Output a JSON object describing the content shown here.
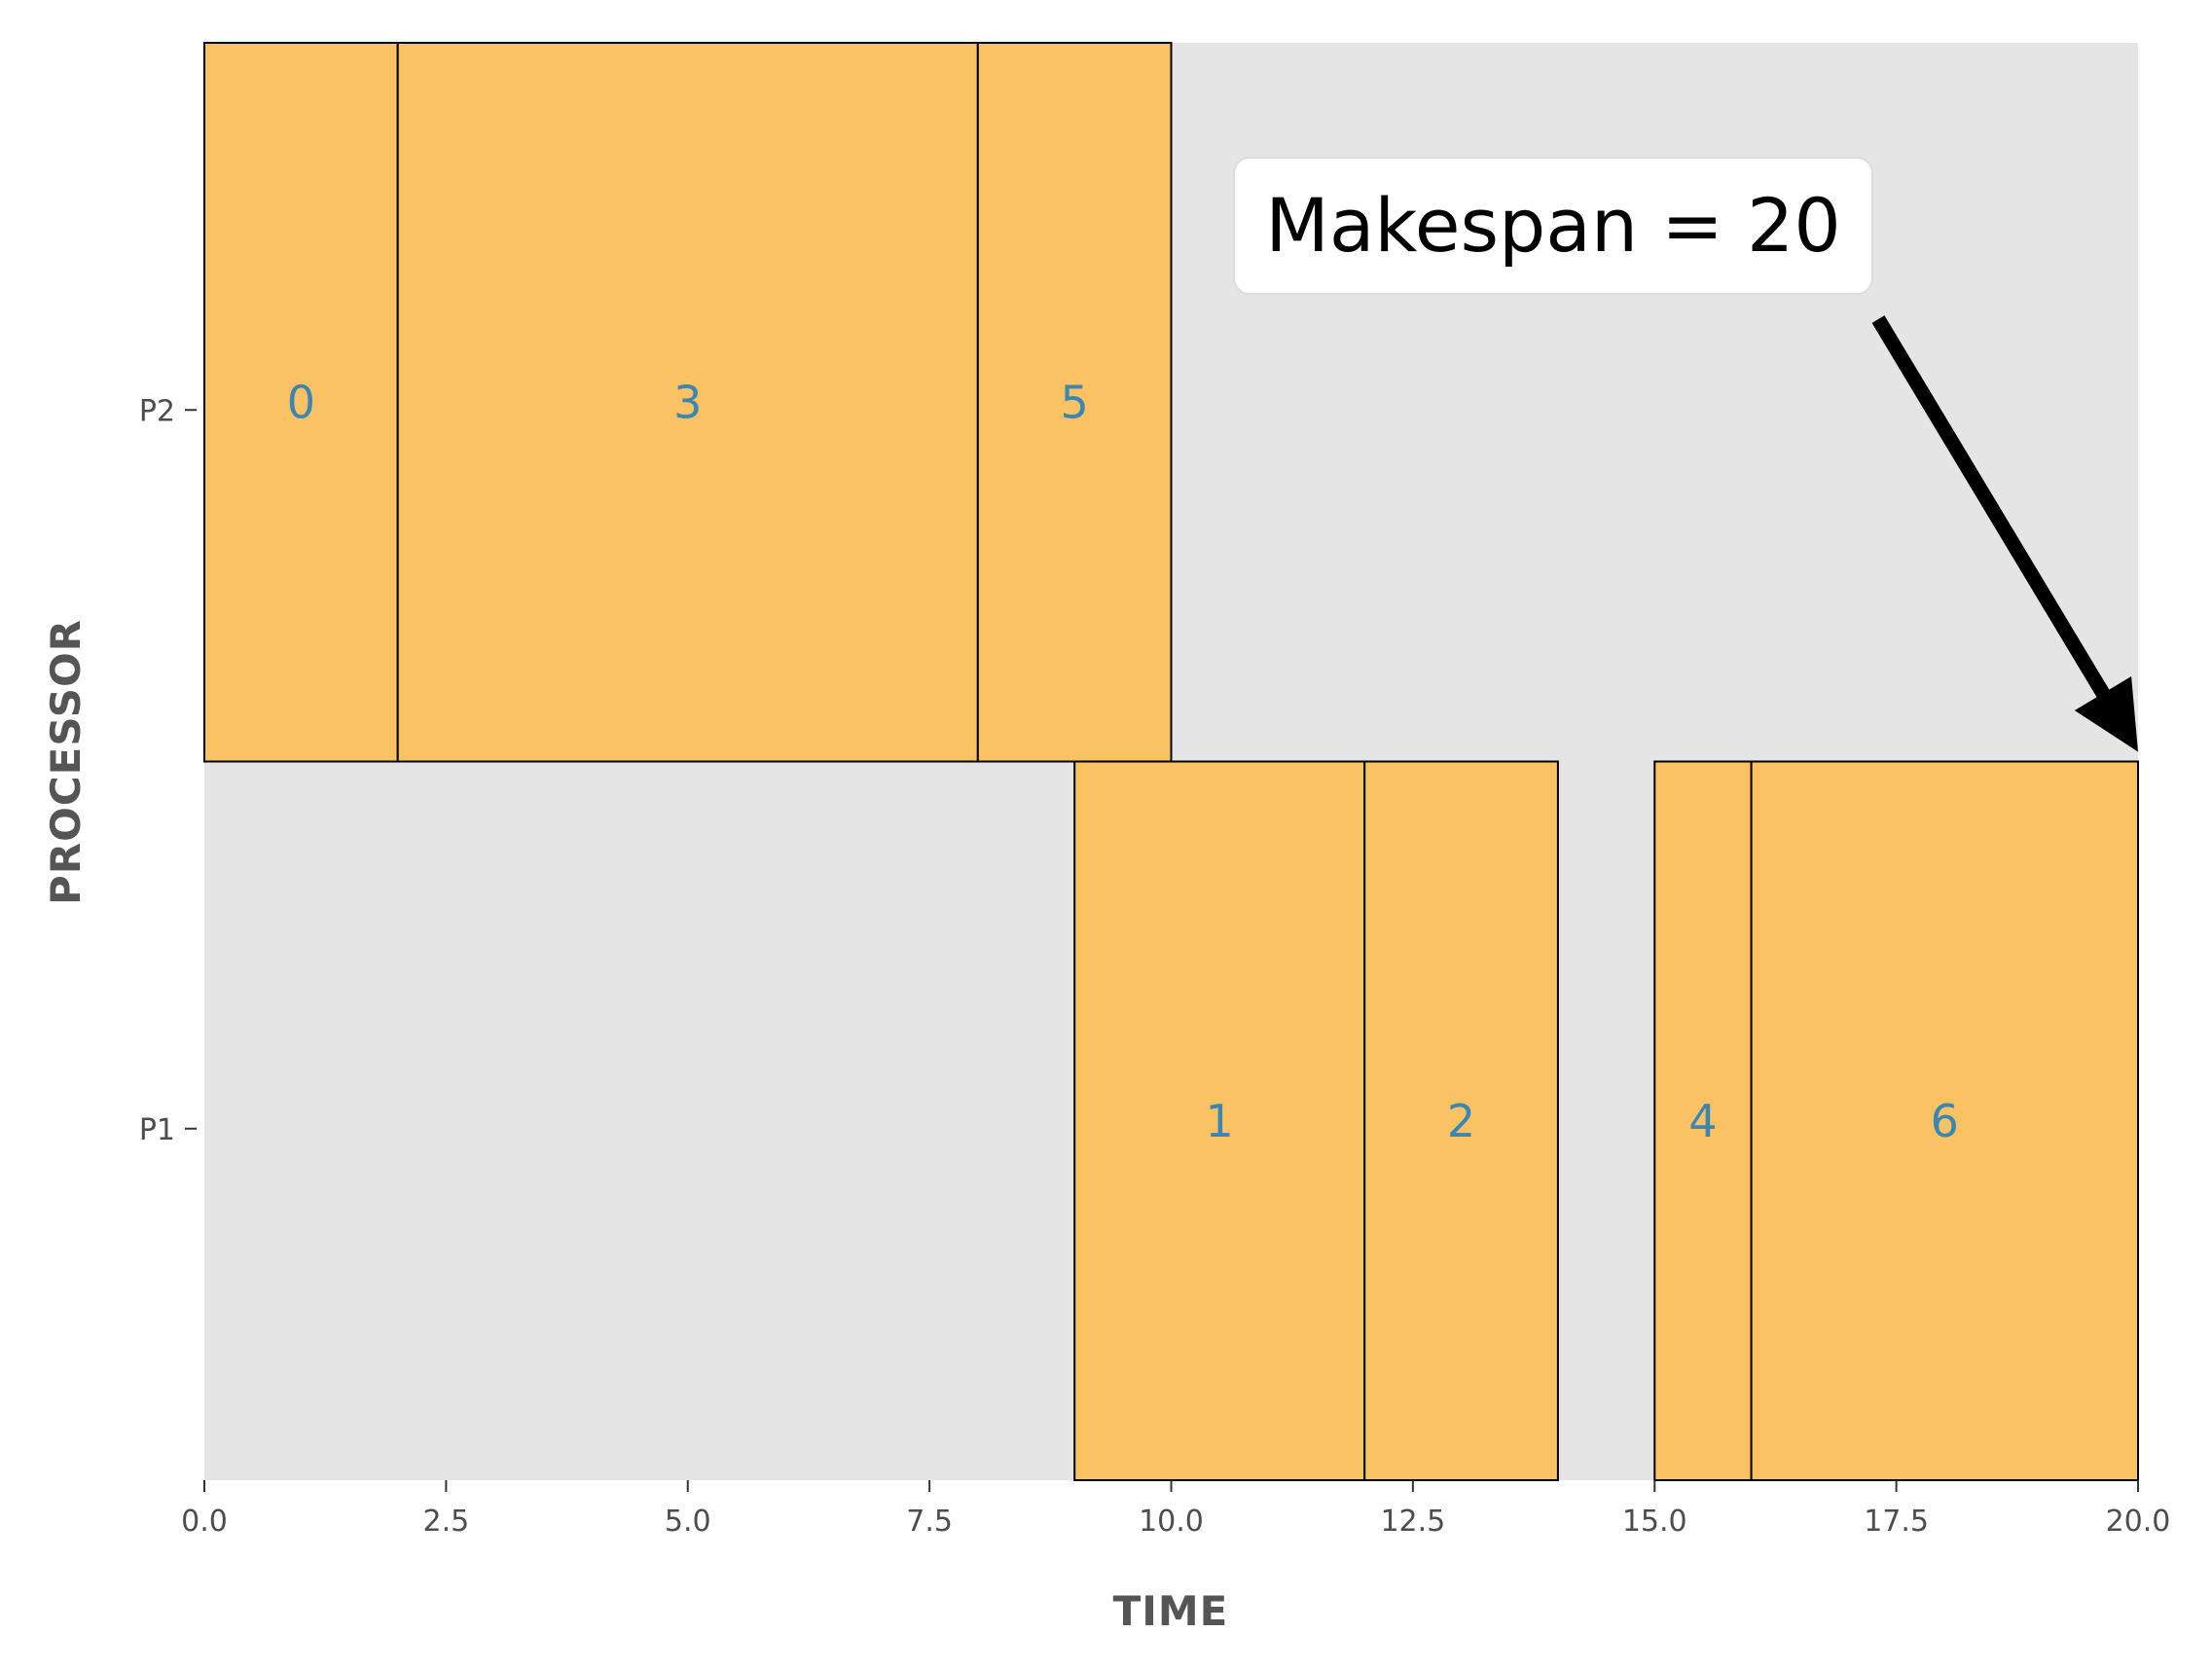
{
  "chart_data": {
    "type": "gantt",
    "xlabel": "TIME",
    "ylabel": "PROCESSOR",
    "xlim": [
      0,
      20
    ],
    "xticks": [
      "0.0",
      "2.5",
      "5.0",
      "7.5",
      "10.0",
      "12.5",
      "15.0",
      "17.5",
      "20.0"
    ],
    "xtick_values": [
      0,
      2.5,
      5,
      7.5,
      10,
      12.5,
      15,
      17.5,
      20
    ],
    "processors": [
      "P2",
      "P1"
    ],
    "tasks": [
      {
        "id": "0",
        "processor": "P2",
        "start": 0,
        "end": 2
      },
      {
        "id": "3",
        "processor": "P2",
        "start": 2,
        "end": 8
      },
      {
        "id": "5",
        "processor": "P2",
        "start": 8,
        "end": 10
      },
      {
        "id": "1",
        "processor": "P1",
        "start": 9,
        "end": 12
      },
      {
        "id": "2",
        "processor": "P1",
        "start": 12,
        "end": 14
      },
      {
        "id": "4",
        "processor": "P1",
        "start": 15,
        "end": 16
      },
      {
        "id": "6",
        "processor": "P1",
        "start": 16,
        "end": 20
      }
    ],
    "annotation": {
      "text": "Makespan = 20",
      "points_to_x": 20
    },
    "colors": {
      "background": "#e5e5e5",
      "task_fill": "#fac262",
      "task_edge": "#000000",
      "task_label": "#3a86b4"
    },
    "grid": false
  }
}
